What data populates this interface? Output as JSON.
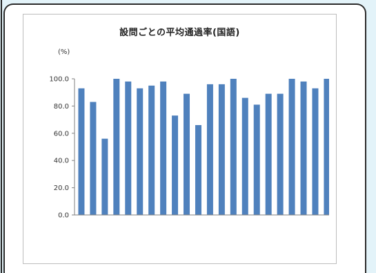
{
  "chart_data": {
    "type": "bar",
    "title": "設問ごとの平均通過率(国語)",
    "xlabel": "",
    "ylabel": "(%)",
    "ylim": [
      0,
      100
    ],
    "yticks": [
      0,
      20,
      40,
      60,
      80,
      100
    ],
    "ytick_labels": [
      "0.0",
      "20.0",
      "40.0",
      "60.0",
      "80.0",
      "100.0"
    ],
    "values": [
      93,
      83,
      56,
      100,
      98,
      93,
      95,
      98,
      73,
      89,
      66,
      96,
      96,
      100,
      86,
      81,
      89,
      89,
      100,
      98,
      93,
      100
    ],
    "grid": false,
    "legend": "none",
    "colors": {
      "bar": "#4f81bd",
      "axis": "#7f7f7f"
    }
  }
}
